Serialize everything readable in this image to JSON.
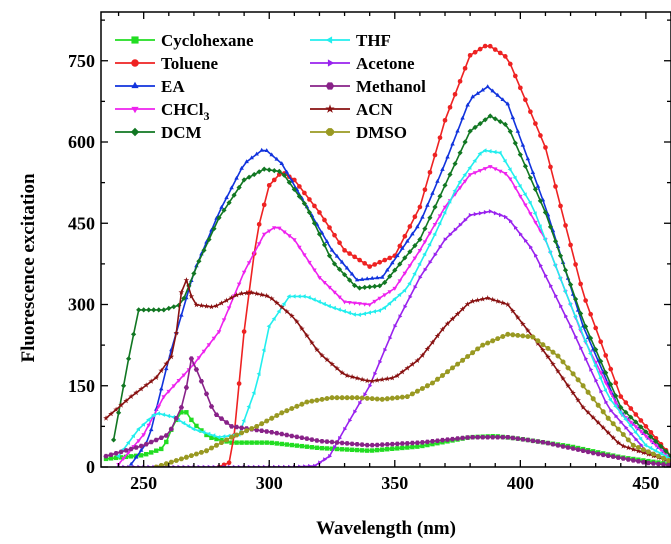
{
  "chart_data": {
    "type": "line",
    "title": "",
    "xlabel": "Wavelength (nm)",
    "ylabel": "Fluorescence excitation",
    "xlim": [
      233,
      460
    ],
    "ylim": [
      0,
      840
    ],
    "xticks": [
      250,
      300,
      350,
      400,
      450
    ],
    "yticks": [
      0,
      150,
      300,
      450,
      600,
      750
    ],
    "grid": false,
    "legend_position": "top-left",
    "series": [
      {
        "name": "Cyclohexane",
        "color": "#22dd22",
        "marker": "square",
        "points": [
          [
            235,
            15
          ],
          [
            250,
            22
          ],
          [
            258,
            35
          ],
          [
            262,
            80
          ],
          [
            266,
            108
          ],
          [
            270,
            80
          ],
          [
            276,
            55
          ],
          [
            285,
            45
          ],
          [
            300,
            45
          ],
          [
            320,
            35
          ],
          [
            340,
            30
          ],
          [
            360,
            38
          ],
          [
            380,
            55
          ],
          [
            390,
            57
          ],
          [
            400,
            52
          ],
          [
            420,
            38
          ],
          [
            440,
            18
          ],
          [
            460,
            5
          ]
        ]
      },
      {
        "name": "Toluene",
        "color": "#ee2222",
        "marker": "circle",
        "points": [
          [
            280,
            0
          ],
          [
            285,
            10
          ],
          [
            290,
            250
          ],
          [
            295,
            430
          ],
          [
            300,
            520
          ],
          [
            305,
            545
          ],
          [
            310,
            530
          ],
          [
            320,
            470
          ],
          [
            330,
            400
          ],
          [
            340,
            370
          ],
          [
            350,
            390
          ],
          [
            360,
            480
          ],
          [
            370,
            640
          ],
          [
            380,
            760
          ],
          [
            387,
            780
          ],
          [
            395,
            755
          ],
          [
            410,
            590
          ],
          [
            425,
            320
          ],
          [
            440,
            130
          ],
          [
            460,
            20
          ]
        ]
      },
      {
        "name": "EA",
        "color": "#1133dd",
        "marker": "triangle-up",
        "points": [
          [
            245,
            5
          ],
          [
            252,
            50
          ],
          [
            260,
            200
          ],
          [
            270,
            360
          ],
          [
            280,
            470
          ],
          [
            290,
            560
          ],
          [
            298,
            588
          ],
          [
            305,
            560
          ],
          [
            315,
            480
          ],
          [
            325,
            400
          ],
          [
            335,
            345
          ],
          [
            345,
            350
          ],
          [
            360,
            450
          ],
          [
            370,
            560
          ],
          [
            380,
            680
          ],
          [
            387,
            702
          ],
          [
            395,
            670
          ],
          [
            410,
            480
          ],
          [
            425,
            260
          ],
          [
            440,
            100
          ],
          [
            460,
            15
          ]
        ]
      },
      {
        "name": "CHCl3",
        "display_name": "CHCl",
        "display_sub": "3",
        "color": "#ee22ee",
        "marker": "triangle-down",
        "points": [
          [
            240,
            5
          ],
          [
            250,
            60
          ],
          [
            258,
            130
          ],
          [
            270,
            190
          ],
          [
            280,
            250
          ],
          [
            290,
            360
          ],
          [
            298,
            430
          ],
          [
            303,
            445
          ],
          [
            310,
            420
          ],
          [
            320,
            350
          ],
          [
            330,
            305
          ],
          [
            340,
            300
          ],
          [
            350,
            330
          ],
          [
            360,
            400
          ],
          [
            370,
            480
          ],
          [
            380,
            540
          ],
          [
            388,
            555
          ],
          [
            395,
            540
          ],
          [
            410,
            420
          ],
          [
            425,
            240
          ],
          [
            440,
            100
          ],
          [
            460,
            15
          ]
        ]
      },
      {
        "name": "DCM",
        "color": "#117722",
        "marker": "diamond",
        "points": [
          [
            238,
            50
          ],
          [
            244,
            200
          ],
          [
            248,
            290
          ],
          [
            258,
            290
          ],
          [
            265,
            300
          ],
          [
            272,
            380
          ],
          [
            280,
            460
          ],
          [
            290,
            530
          ],
          [
            298,
            550
          ],
          [
            305,
            545
          ],
          [
            315,
            480
          ],
          [
            325,
            380
          ],
          [
            335,
            330
          ],
          [
            345,
            335
          ],
          [
            360,
            420
          ],
          [
            370,
            520
          ],
          [
            380,
            620
          ],
          [
            388,
            648
          ],
          [
            395,
            630
          ],
          [
            410,
            470
          ],
          [
            425,
            270
          ],
          [
            440,
            110
          ],
          [
            460,
            20
          ]
        ]
      },
      {
        "name": "THF",
        "color": "#22eeee",
        "marker": "triangle-left",
        "points": [
          [
            240,
            20
          ],
          [
            248,
            70
          ],
          [
            255,
            100
          ],
          [
            262,
            92
          ],
          [
            270,
            70
          ],
          [
            280,
            55
          ],
          [
            288,
            60
          ],
          [
            295,
            150
          ],
          [
            300,
            260
          ],
          [
            308,
            315
          ],
          [
            315,
            315
          ],
          [
            325,
            295
          ],
          [
            335,
            280
          ],
          [
            345,
            290
          ],
          [
            355,
            330
          ],
          [
            365,
            420
          ],
          [
            375,
            520
          ],
          [
            385,
            585
          ],
          [
            392,
            580
          ],
          [
            405,
            480
          ],
          [
            420,
            300
          ],
          [
            435,
            130
          ],
          [
            450,
            40
          ],
          [
            460,
            15
          ]
        ]
      },
      {
        "name": "Acetone",
        "color": "#9922ee",
        "marker": "triangle-right",
        "points": [
          [
            240,
            0
          ],
          [
            310,
            0
          ],
          [
            318,
            2
          ],
          [
            324,
            20
          ],
          [
            330,
            70
          ],
          [
            340,
            150
          ],
          [
            350,
            260
          ],
          [
            360,
            350
          ],
          [
            370,
            420
          ],
          [
            380,
            465
          ],
          [
            388,
            472
          ],
          [
            395,
            460
          ],
          [
            405,
            400
          ],
          [
            420,
            260
          ],
          [
            435,
            110
          ],
          [
            450,
            30
          ],
          [
            460,
            10
          ]
        ]
      },
      {
        "name": "Methanol",
        "color": "#882288",
        "marker": "hexagon",
        "points": [
          [
            235,
            20
          ],
          [
            250,
            40
          ],
          [
            260,
            60
          ],
          [
            266,
            120
          ],
          [
            269,
            200
          ],
          [
            272,
            170
          ],
          [
            278,
            100
          ],
          [
            285,
            75
          ],
          [
            300,
            65
          ],
          [
            320,
            48
          ],
          [
            340,
            40
          ],
          [
            360,
            45
          ],
          [
            380,
            55
          ],
          [
            395,
            55
          ],
          [
            410,
            45
          ],
          [
            430,
            25
          ],
          [
            450,
            8
          ],
          [
            460,
            3
          ]
        ]
      },
      {
        "name": "ACN",
        "color": "#881111",
        "marker": "star",
        "points": [
          [
            235,
            90
          ],
          [
            245,
            130
          ],
          [
            255,
            165
          ],
          [
            262,
            210
          ],
          [
            266,
            360
          ],
          [
            270,
            300
          ],
          [
            278,
            295
          ],
          [
            288,
            320
          ],
          [
            293,
            322
          ],
          [
            300,
            315
          ],
          [
            310,
            275
          ],
          [
            320,
            210
          ],
          [
            330,
            170
          ],
          [
            340,
            158
          ],
          [
            350,
            165
          ],
          [
            360,
            200
          ],
          [
            370,
            260
          ],
          [
            380,
            305
          ],
          [
            387,
            312
          ],
          [
            395,
            300
          ],
          [
            410,
            210
          ],
          [
            425,
            110
          ],
          [
            440,
            40
          ],
          [
            460,
            10
          ]
        ]
      },
      {
        "name": "DMSO",
        "color": "#999922",
        "marker": "octagon",
        "points": [
          [
            255,
            0
          ],
          [
            265,
            15
          ],
          [
            275,
            30
          ],
          [
            285,
            55
          ],
          [
            295,
            75
          ],
          [
            305,
            100
          ],
          [
            315,
            120
          ],
          [
            325,
            128
          ],
          [
            335,
            128
          ],
          [
            345,
            125
          ],
          [
            355,
            130
          ],
          [
            365,
            155
          ],
          [
            375,
            190
          ],
          [
            385,
            225
          ],
          [
            395,
            245
          ],
          [
            405,
            240
          ],
          [
            415,
            205
          ],
          [
            425,
            150
          ],
          [
            435,
            90
          ],
          [
            445,
            40
          ],
          [
            460,
            10
          ]
        ]
      }
    ]
  }
}
